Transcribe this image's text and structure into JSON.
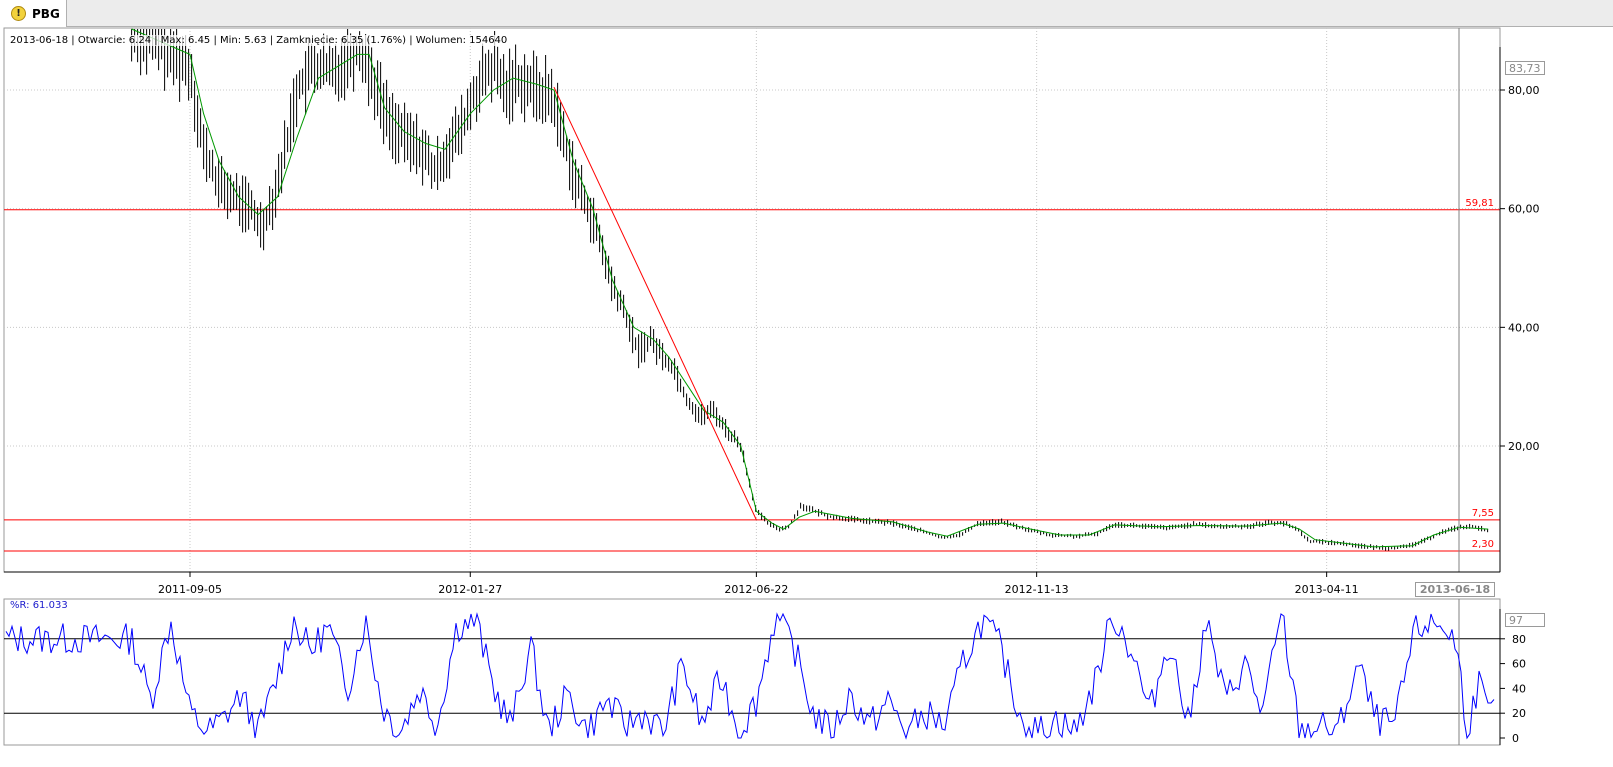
{
  "tab": {
    "label": "PBG",
    "icon": "warning-icon"
  },
  "info_line": "2013-06-18 | Otwarcie: 6.24 | Max: 6.45 | Min: 5.63 | Zamknięcie: 6.35 (1.76%)  | Wolumen: 154640",
  "price_box": "83,73",
  "date_box": "2013-06-18",
  "indicator_label": "%R: 61.033",
  "indicator_box": "97",
  "colors": {
    "candle": "#000000",
    "ma": "#009900",
    "line": "#ff0000",
    "indicator": "#0000ff",
    "grid": "#c8c8c8",
    "cursor": "#808080"
  },
  "chart_data": [
    {
      "type": "ohlc",
      "x_ticks": [
        "2011-09-05",
        "2012-01-27",
        "2012-06-22",
        "2012-11-13",
        "2013-04-11"
      ],
      "y_ticks": [
        "20,00",
        "40,00",
        "60,00",
        "80,00"
      ],
      "ylim": [
        0,
        88
      ],
      "grid": true,
      "price_points": [
        [
          "2011-08-06",
          90
        ],
        [
          "2011-08-20",
          88
        ],
        [
          "2011-08-26",
          86
        ],
        [
          "2011-09-05",
          84
        ],
        [
          "2011-09-12",
          70
        ],
        [
          "2011-09-20",
          64
        ],
        [
          "2011-09-28",
          62
        ],
        [
          "2011-10-06",
          60
        ],
        [
          "2011-10-12",
          57
        ],
        [
          "2011-10-18",
          62
        ],
        [
          "2011-10-24",
          70
        ],
        [
          "2011-10-30",
          80
        ],
        [
          "2011-11-08",
          84
        ],
        [
          "2011-11-18",
          83
        ],
        [
          "2011-11-26",
          86
        ],
        [
          "2011-12-02",
          87
        ],
        [
          "2011-12-08",
          82
        ],
        [
          "2011-12-16",
          75
        ],
        [
          "2011-12-24",
          72
        ],
        [
          "2012-01-02",
          70
        ],
        [
          "2012-01-09",
          66
        ],
        [
          "2012-01-15",
          70
        ],
        [
          "2012-01-22",
          73
        ],
        [
          "2012-01-30",
          80
        ],
        [
          "2012-02-08",
          84
        ],
        [
          "2012-02-14",
          80
        ],
        [
          "2012-02-20",
          82
        ],
        [
          "2012-03-01",
          80
        ],
        [
          "2012-03-09",
          79
        ],
        [
          "2012-03-15",
          72
        ],
        [
          "2012-03-22",
          64
        ],
        [
          "2012-03-28",
          60
        ],
        [
          "2012-04-02",
          55
        ],
        [
          "2012-04-09",
          47
        ],
        [
          "2012-04-16",
          42
        ],
        [
          "2012-04-22",
          36
        ],
        [
          "2012-04-29",
          38
        ],
        [
          "2012-05-05",
          35
        ],
        [
          "2012-05-11",
          33
        ],
        [
          "2012-05-17",
          28
        ],
        [
          "2012-05-24",
          25
        ],
        [
          "2012-05-31",
          26
        ],
        [
          "2012-06-06",
          23
        ],
        [
          "2012-06-14",
          20
        ],
        [
          "2012-06-22",
          9
        ],
        [
          "2012-06-28",
          7
        ],
        [
          "2012-07-04",
          6
        ],
        [
          "2012-07-09",
          6.5
        ],
        [
          "2012-07-15",
          10
        ],
        [
          "2012-07-22",
          9
        ],
        [
          "2012-07-31",
          8
        ],
        [
          "2012-08-14",
          7.5
        ],
        [
          "2012-08-31",
          7
        ],
        [
          "2012-09-14",
          5.8
        ],
        [
          "2012-09-26",
          4.5
        ],
        [
          "2012-10-06",
          5.2
        ],
        [
          "2012-10-14",
          7
        ],
        [
          "2012-10-27",
          7.2
        ],
        [
          "2012-11-05",
          6.2
        ],
        [
          "2012-11-20",
          5
        ],
        [
          "2012-12-04",
          4.8
        ],
        [
          "2012-12-14",
          5.2
        ],
        [
          "2012-12-23",
          6.8
        ],
        [
          "2013-01-06",
          6.5
        ],
        [
          "2013-01-20",
          6.2
        ],
        [
          "2013-02-02",
          6.8
        ],
        [
          "2013-02-16",
          6.4
        ],
        [
          "2013-03-02",
          6.5
        ],
        [
          "2013-03-11",
          7
        ],
        [
          "2013-03-19",
          7.1
        ],
        [
          "2013-03-27",
          6
        ],
        [
          "2013-04-02",
          4
        ],
        [
          "2013-04-11",
          3.8
        ],
        [
          "2013-04-22",
          3.5
        ],
        [
          "2013-05-02",
          3
        ],
        [
          "2013-05-13",
          2.8
        ],
        [
          "2013-05-22",
          3
        ],
        [
          "2013-05-31",
          4
        ],
        [
          "2013-06-09",
          5.5
        ],
        [
          "2013-06-18",
          6.3
        ],
        [
          "2013-06-25",
          6.4
        ],
        [
          "2013-07-03",
          5.8
        ]
      ],
      "ma_points": [
        [
          "2011-08-06",
          92
        ],
        [
          "2011-09-05",
          86
        ],
        [
          "2011-09-12",
          76
        ],
        [
          "2011-09-20",
          68
        ],
        [
          "2011-09-30",
          62
        ],
        [
          "2011-10-10",
          59
        ],
        [
          "2011-10-20",
          62
        ],
        [
          "2011-10-30",
          72
        ],
        [
          "2011-11-10",
          82
        ],
        [
          "2011-11-20",
          84
        ],
        [
          "2011-11-30",
          86
        ],
        [
          "2011-12-06",
          86
        ],
        [
          "2011-12-14",
          77
        ],
        [
          "2011-12-24",
          73
        ],
        [
          "2012-01-04",
          71
        ],
        [
          "2012-01-14",
          70
        ],
        [
          "2012-01-27",
          76
        ],
        [
          "2012-02-08",
          80
        ],
        [
          "2012-02-18",
          82
        ],
        [
          "2012-03-01",
          81
        ],
        [
          "2012-03-10",
          80
        ],
        [
          "2012-03-20",
          68
        ],
        [
          "2012-03-30",
          60
        ],
        [
          "2012-04-09",
          48
        ],
        [
          "2012-04-20",
          40
        ],
        [
          "2012-04-30",
          38
        ],
        [
          "2012-05-08",
          35
        ],
        [
          "2012-05-18",
          30
        ],
        [
          "2012-05-26",
          26
        ],
        [
          "2012-06-05",
          24
        ],
        [
          "2012-06-14",
          20
        ],
        [
          "2012-06-22",
          9
        ],
        [
          "2012-06-30",
          7
        ],
        [
          "2012-07-06",
          6
        ],
        [
          "2012-07-14",
          8
        ],
        [
          "2012-07-22",
          9
        ],
        [
          "2012-08-10",
          7.8
        ],
        [
          "2012-08-31",
          7.2
        ],
        [
          "2012-09-18",
          5.5
        ],
        [
          "2012-09-28",
          4.8
        ],
        [
          "2012-10-14",
          6.8
        ],
        [
          "2012-10-27",
          7
        ],
        [
          "2012-11-10",
          6
        ],
        [
          "2012-11-25",
          5
        ],
        [
          "2012-12-10",
          5
        ],
        [
          "2012-12-23",
          6.7
        ],
        [
          "2013-01-15",
          6.4
        ],
        [
          "2013-02-05",
          6.6
        ],
        [
          "2013-03-01",
          6.5
        ],
        [
          "2013-03-19",
          7
        ],
        [
          "2013-03-28",
          6
        ],
        [
          "2013-04-05",
          4.2
        ],
        [
          "2013-04-20",
          3.6
        ],
        [
          "2013-05-05",
          3
        ],
        [
          "2013-05-25",
          3.2
        ],
        [
          "2013-06-05",
          5
        ],
        [
          "2013-06-18",
          6.3
        ],
        [
          "2013-07-03",
          6
        ]
      ],
      "h_lines": [
        {
          "value": 59.81,
          "label": "59,81"
        },
        {
          "value": 7.55,
          "label": "7,55"
        },
        {
          "value": 2.3,
          "label": "2,30"
        }
      ],
      "trend_line": {
        "from": [
          "2012-03-10",
          80.5
        ],
        "to": [
          "2012-06-22",
          7.55
        ]
      },
      "cursor_date": "2013-06-18"
    },
    {
      "type": "line",
      "name": "%R",
      "ylim": [
        0,
        100
      ],
      "y_ticks": [
        "0",
        "20",
        "40",
        "60",
        "80"
      ],
      "h_lines": [
        20,
        80
      ],
      "points": [
        [
          "2011-08-06",
          80
        ],
        [
          "2011-08-16",
          30
        ],
        [
          "2011-08-26",
          95
        ],
        [
          "2011-09-05",
          20
        ],
        [
          "2011-09-14",
          5
        ],
        [
          "2011-09-22",
          15
        ],
        [
          "2011-10-01",
          35
        ],
        [
          "2011-10-10",
          5
        ],
        [
          "2011-10-19",
          45
        ],
        [
          "2011-10-28",
          95
        ],
        [
          "2011-11-06",
          70
        ],
        [
          "2011-11-15",
          90
        ],
        [
          "2011-11-25",
          40
        ],
        [
          "2011-12-04",
          95
        ],
        [
          "2011-12-13",
          25
        ],
        [
          "2011-12-22",
          5
        ],
        [
          "2012-01-01",
          40
        ],
        [
          "2012-01-10",
          10
        ],
        [
          "2012-01-20",
          90
        ],
        [
          "2012-01-30",
          95
        ],
        [
          "2012-02-08",
          40
        ],
        [
          "2012-02-17",
          10
        ],
        [
          "2012-02-27",
          75
        ],
        [
          "2012-03-07",
          5
        ],
        [
          "2012-03-17",
          35
        ],
        [
          "2012-03-27",
          5
        ],
        [
          "2012-04-06",
          30
        ],
        [
          "2012-04-16",
          10
        ],
        [
          "2012-04-25",
          20
        ],
        [
          "2012-05-05",
          5
        ],
        [
          "2012-05-15",
          60
        ],
        [
          "2012-05-25",
          10
        ],
        [
          "2012-06-04",
          50
        ],
        [
          "2012-06-13",
          5
        ],
        [
          "2012-06-22",
          30
        ],
        [
          "2012-07-02",
          100
        ],
        [
          "2012-07-12",
          70
        ],
        [
          "2012-07-21",
          20
        ],
        [
          "2012-07-31",
          5
        ],
        [
          "2012-08-09",
          35
        ],
        [
          "2012-08-19",
          10
        ],
        [
          "2012-08-29",
          30
        ],
        [
          "2012-09-07",
          5
        ],
        [
          "2012-09-17",
          20
        ],
        [
          "2012-09-27",
          10
        ],
        [
          "2012-10-06",
          60
        ],
        [
          "2012-10-16",
          95
        ],
        [
          "2012-10-25",
          75
        ],
        [
          "2012-11-04",
          20
        ],
        [
          "2012-11-13",
          5
        ],
        [
          "2012-11-23",
          15
        ],
        [
          "2012-12-03",
          5
        ],
        [
          "2012-12-13",
          45
        ],
        [
          "2012-12-22",
          100
        ],
        [
          "2013-01-01",
          70
        ],
        [
          "2013-01-10",
          20
        ],
        [
          "2013-01-20",
          80
        ],
        [
          "2013-01-30",
          10
        ],
        [
          "2013-02-08",
          95
        ],
        [
          "2013-02-18",
          30
        ],
        [
          "2013-02-28",
          60
        ],
        [
          "2013-03-09",
          20
        ],
        [
          "2013-03-19",
          100
        ],
        [
          "2013-03-28",
          5
        ],
        [
          "2013-04-07",
          10
        ],
        [
          "2013-04-17",
          5
        ],
        [
          "2013-04-27",
          60
        ],
        [
          "2013-05-06",
          15
        ],
        [
          "2013-05-16",
          10
        ],
        [
          "2013-05-26",
          85
        ],
        [
          "2013-06-04",
          95
        ],
        [
          "2013-06-14",
          85
        ],
        [
          "2013-06-18",
          61
        ],
        [
          "2013-06-22",
          5
        ],
        [
          "2013-06-28",
          45
        ],
        [
          "2013-07-03",
          20
        ]
      ]
    }
  ]
}
